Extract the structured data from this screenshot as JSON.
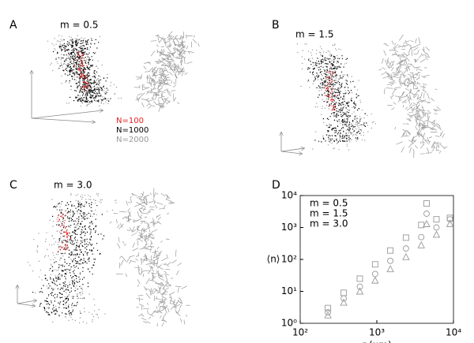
{
  "panels": {
    "A": {
      "label": "A",
      "title": "m = 0.5"
    },
    "B": {
      "label": "B",
      "title": "m = 1.5"
    },
    "C": {
      "label": "C",
      "title": "m = 3.0"
    },
    "D": {
      "label": "D"
    }
  },
  "legend": [
    {
      "name": "N=100",
      "color": "#e02020"
    },
    {
      "name": "N=1000",
      "color": "#000000"
    },
    {
      "name": "N=2000",
      "color": "#999999"
    }
  ],
  "chart_data": {
    "type": "scatter",
    "x_label": "r (μm)",
    "y_label": "⟨n⟩",
    "x": [
      230,
      370,
      600,
      950,
      1500,
      2400,
      3800,
      6000,
      9000
    ],
    "series": [
      {
        "name": "m = 0.5",
        "marker": "square",
        "color": "#999999",
        "values": [
          3,
          9,
          25,
          70,
          190,
          480,
          1200,
          1800,
          2000
        ]
      },
      {
        "name": "m = 1.5",
        "marker": "circle",
        "color": "#999999",
        "values": [
          2.2,
          6,
          14,
          35,
          90,
          220,
          500,
          1000,
          1800
        ]
      },
      {
        "name": "m = 3.0",
        "marker": "triangle",
        "color": "#999999",
        "values": [
          1.8,
          4.5,
          10,
          22,
          50,
          120,
          280,
          600,
          1300
        ]
      }
    ],
    "log_x": true,
    "log_y": true,
    "xlim": [
      100,
      10000
    ],
    "xticks": [
      {
        "value": 100,
        "label": "10²"
      },
      {
        "value": 1000,
        "label": "10³"
      },
      {
        "value": 10000,
        "label": "10⁴"
      }
    ],
    "ylim": [
      1,
      10000
    ],
    "yticks": [
      {
        "value": 1,
        "label": "10⁰"
      },
      {
        "value": 10,
        "label": "10¹"
      },
      {
        "value": 100,
        "label": "10²"
      },
      {
        "value": 1000,
        "label": "10³"
      },
      {
        "value": 10000,
        "label": "10⁴"
      }
    ]
  }
}
